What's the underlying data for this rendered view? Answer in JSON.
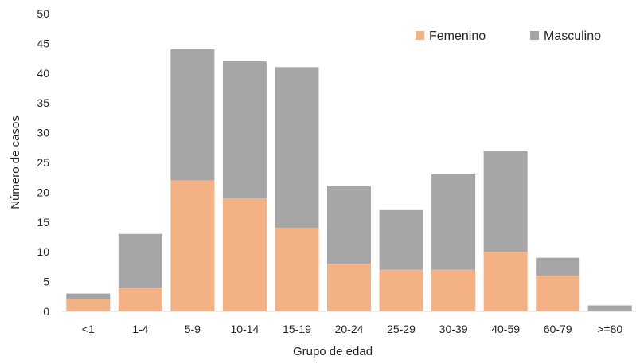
{
  "chart_data": {
    "type": "bar",
    "stacked": true,
    "categories": [
      "<1",
      "1-4",
      "5-9",
      "10-14",
      "15-19",
      "20-24",
      "25-29",
      "30-39",
      "40-59",
      "60-79",
      ">=80"
    ],
    "series": [
      {
        "name": "Femenino",
        "color": "#f4b183",
        "values": [
          2,
          4,
          22,
          19,
          14,
          8,
          7,
          7,
          10,
          6,
          0
        ]
      },
      {
        "name": "Masculino",
        "color": "#a6a6a6",
        "values": [
          1,
          9,
          22,
          23,
          27,
          13,
          10,
          16,
          17,
          3,
          1
        ]
      }
    ],
    "xlabel": "Grupo de edad",
    "ylabel": "Número de casos",
    "ylim": [
      0,
      50
    ],
    "yticks": [
      0,
      5,
      10,
      15,
      20,
      25,
      30,
      35,
      40,
      45,
      50
    ],
    "grid": false,
    "legend_position": "top-right"
  }
}
